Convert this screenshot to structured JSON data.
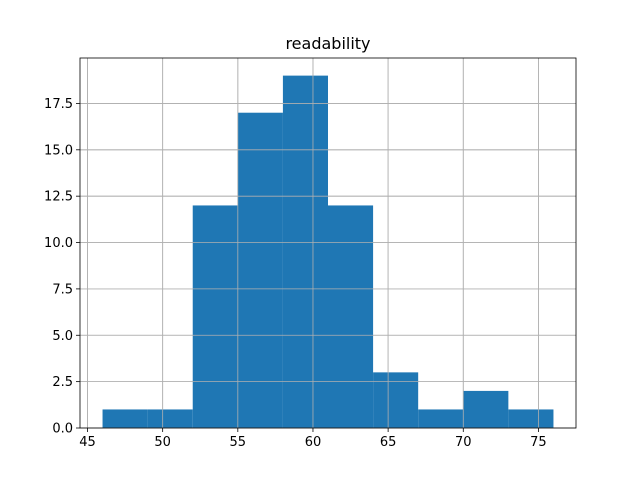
{
  "chart_data": {
    "type": "bar",
    "title": "readability",
    "xlabel": "",
    "ylabel": "",
    "bins": [
      {
        "x0": 46.0,
        "x1": 49.0,
        "count": 1
      },
      {
        "x0": 49.0,
        "x1": 52.0,
        "count": 1
      },
      {
        "x0": 52.0,
        "x1": 55.0,
        "count": 12
      },
      {
        "x0": 55.0,
        "x1": 58.0,
        "count": 17
      },
      {
        "x0": 58.0,
        "x1": 61.0,
        "count": 19
      },
      {
        "x0": 61.0,
        "x1": 64.0,
        "count": 12
      },
      {
        "x0": 64.0,
        "x1": 67.0,
        "count": 3
      },
      {
        "x0": 67.0,
        "x1": 70.0,
        "count": 1
      },
      {
        "x0": 70.0,
        "x1": 73.0,
        "count": 2
      },
      {
        "x0": 73.0,
        "x1": 76.0,
        "count": 1
      }
    ],
    "xlim": [
      44.5,
      77.5
    ],
    "ylim": [
      0,
      19.95
    ],
    "x_ticks": [
      45,
      50,
      55,
      60,
      65,
      70,
      75
    ],
    "x_tick_labels": [
      "45",
      "50",
      "55",
      "60",
      "65",
      "70",
      "75"
    ],
    "y_ticks": [
      0,
      2.5,
      5,
      7.5,
      10,
      12.5,
      15,
      17.5
    ],
    "y_tick_labels": [
      "0.0",
      "2.5",
      "5.0",
      "7.5",
      "10.0",
      "12.5",
      "15.0",
      "17.5"
    ],
    "grid": true,
    "bar_color": "#1f77b4",
    "grid_color": "#b0b0b0"
  }
}
